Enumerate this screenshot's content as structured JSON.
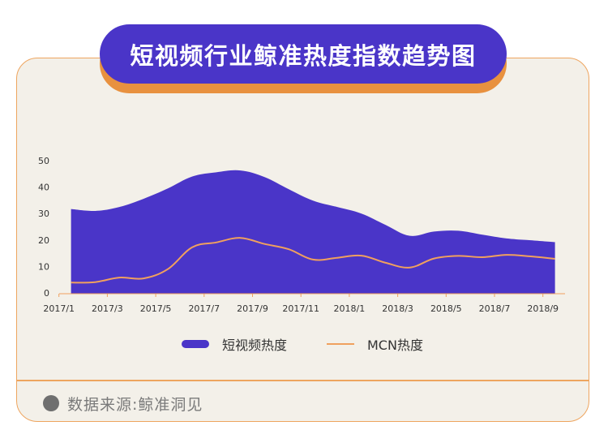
{
  "header": {
    "title": "短视频行业鲸准热度指数趋势图"
  },
  "legend": {
    "items": [
      {
        "label": "短视频热度",
        "type": "area",
        "color": "#4a35c8"
      },
      {
        "label": "MCN热度",
        "type": "line",
        "color": "#f0a05e"
      }
    ]
  },
  "footer": {
    "source": "数据来源:鲸准洞见"
  },
  "colors": {
    "primary": "#4a35c8",
    "accent": "#eea55f",
    "card_bg": "#f3f0e9"
  },
  "chart_data": {
    "type": "area",
    "title": "短视频行业鲸准热度指数趋势图",
    "xlabel": "",
    "ylabel": "",
    "ylim": [
      0,
      50
    ],
    "yticks": [
      0,
      10,
      20,
      30,
      40,
      50
    ],
    "grid": false,
    "legend_position": "bottom",
    "x": [
      "2017/1",
      "2017/2",
      "2017/3",
      "2017/4",
      "2017/5",
      "2017/6",
      "2017/7",
      "2017/8",
      "2017/9",
      "2017/10",
      "2017/11",
      "2017/12",
      "2018/1",
      "2018/2",
      "2018/3",
      "2018/4",
      "2018/5",
      "2018/6",
      "2018/7",
      "2018/8",
      "2018/9"
    ],
    "xtick_labels": [
      "2017/1",
      "2017/3",
      "2017/5",
      "2017/7",
      "2017/9",
      "2017/11",
      "2018/1",
      "2018/3",
      "2018/5",
      "2018/7",
      "2018/9"
    ],
    "series": [
      {
        "name": "短视频热度",
        "type": "area",
        "color": "#4a35c8",
        "values": [
          32.0,
          31.3,
          32.8,
          35.9,
          39.8,
          44.3,
          45.9,
          46.6,
          44.1,
          39.5,
          35.2,
          32.8,
          30.3,
          26.0,
          21.9,
          23.5,
          23.8,
          22.3,
          20.9,
          20.2,
          19.5
        ]
      },
      {
        "name": "MCN热度",
        "type": "line",
        "color": "#f0a05e",
        "values": [
          4.2,
          4.4,
          6.1,
          5.8,
          9.3,
          17.5,
          19.4,
          21.1,
          18.8,
          16.8,
          12.9,
          13.6,
          14.4,
          11.7,
          9.9,
          13.3,
          14.3,
          13.8,
          14.7,
          14.1,
          13.2
        ]
      }
    ]
  }
}
